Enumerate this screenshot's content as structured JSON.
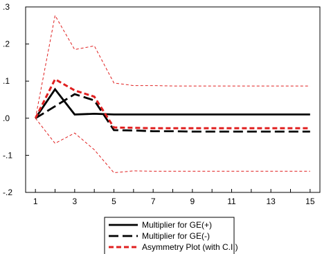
{
  "chart_data": {
    "type": "line",
    "title": "",
    "xlabel": "",
    "ylabel": "",
    "x": [
      1,
      2,
      3,
      4,
      5,
      6,
      7,
      8,
      9,
      10,
      11,
      12,
      13,
      14,
      15
    ],
    "xticks": [
      1,
      3,
      5,
      7,
      9,
      11,
      13,
      15
    ],
    "xtick_labels": [
      "1",
      "3",
      "5",
      "7",
      "9",
      "11",
      "13",
      "15"
    ],
    "yticks": [
      0.3,
      0.2,
      0.1,
      0.0,
      -0.1,
      -0.2
    ],
    "ytick_labels": [
      ".3",
      ".2",
      ".1",
      ".0",
      "-.1",
      "-.2"
    ],
    "ylim": [
      -0.2,
      0.3
    ],
    "xlim": [
      0.5,
      15.5
    ],
    "grid": false,
    "legend_position": "bottom-center",
    "series": [
      {
        "name": "Multiplier for GE(+)",
        "style": "solid",
        "color": "#000000",
        "values": [
          0.0,
          0.078,
          0.01,
          0.012,
          0.01,
          0.01,
          0.01,
          0.01,
          0.01,
          0.01,
          0.01,
          0.01,
          0.01,
          0.01,
          0.01
        ]
      },
      {
        "name": "Multiplier for GE(-)",
        "style": "long-dash",
        "color": "#000000",
        "values": [
          0.0,
          0.032,
          0.065,
          0.048,
          -0.032,
          -0.033,
          -0.035,
          -0.035,
          -0.036,
          -0.036,
          -0.036,
          -0.036,
          -0.036,
          -0.036,
          -0.036
        ]
      },
      {
        "name": "Asymmetry Plot (with C.I.)",
        "style": "dashed",
        "color": "#e02020",
        "values": [
          0.0,
          0.105,
          0.075,
          0.058,
          -0.025,
          -0.026,
          -0.027,
          -0.027,
          -0.027,
          -0.027,
          -0.027,
          -0.027,
          -0.027,
          -0.027,
          -0.027
        ]
      },
      {
        "name": "",
        "role": "upper C.I.",
        "style": "dashed-thin",
        "color": "#e02020",
        "values": [
          0.0,
          0.277,
          0.185,
          0.195,
          0.095,
          0.088,
          0.088,
          0.087,
          0.087,
          0.087,
          0.087,
          0.087,
          0.087,
          0.087,
          0.087
        ]
      },
      {
        "name": "",
        "role": "lower C.I.",
        "style": "dashed-thin",
        "color": "#e02020",
        "values": [
          0.0,
          -0.068,
          -0.04,
          -0.085,
          -0.147,
          -0.142,
          -0.143,
          -0.143,
          -0.143,
          -0.143,
          -0.143,
          -0.143,
          -0.143,
          -0.143,
          -0.143
        ]
      }
    ]
  }
}
